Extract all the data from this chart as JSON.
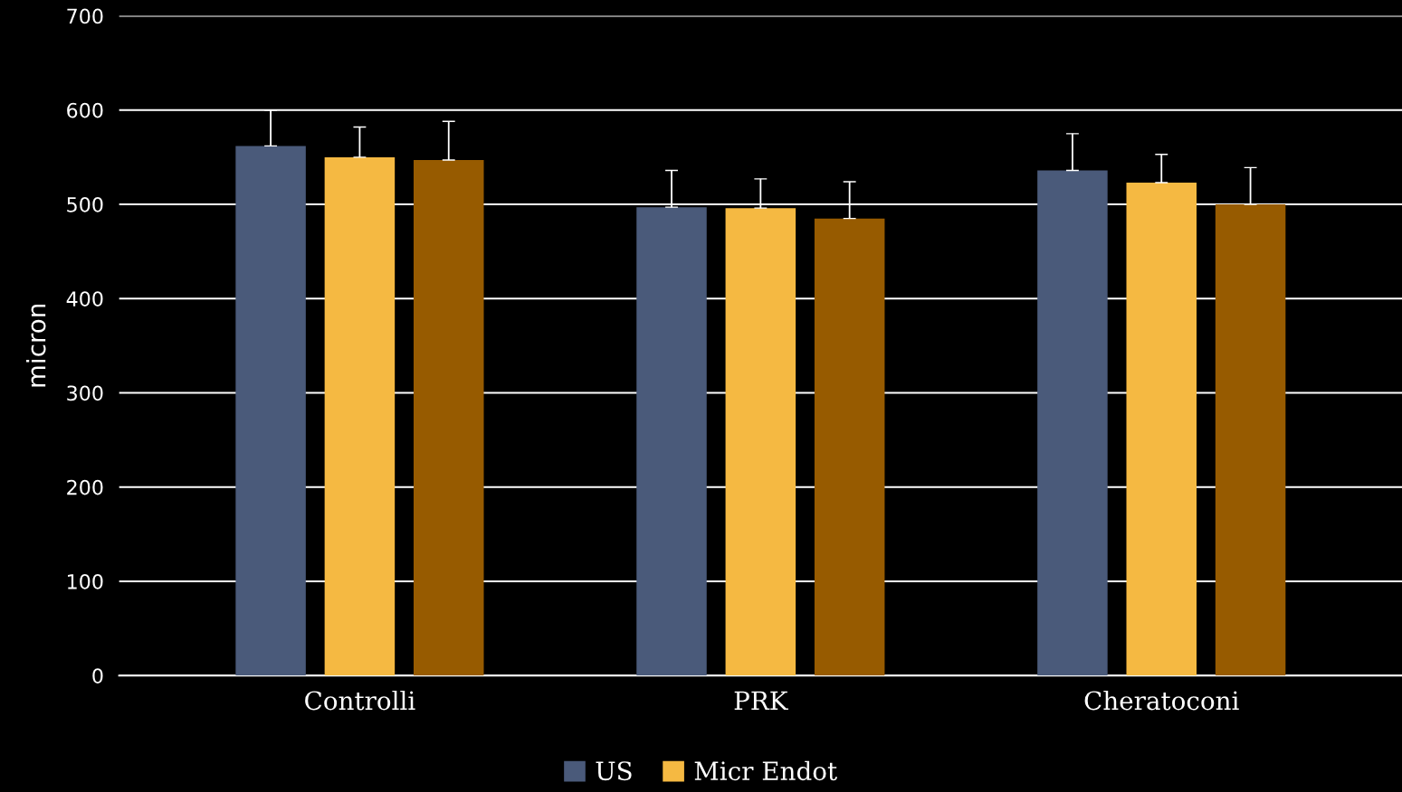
{
  "chart_data": {
    "type": "bar",
    "ylabel": "micron",
    "categories": [
      "Controlli",
      "PRK",
      "Cheratoconi"
    ],
    "series": [
      {
        "name": "US",
        "color": "#4a5a7a",
        "values": [
          562,
          497,
          536
        ],
        "errors": [
          [
            562,
            600
          ],
          [
            497,
            536
          ],
          [
            536,
            575
          ]
        ]
      },
      {
        "name": "Micr Endot",
        "color": "#f5b942",
        "values": [
          550,
          496,
          523
        ],
        "errors": [
          [
            550,
            582
          ],
          [
            496,
            527
          ],
          [
            523,
            553
          ]
        ]
      },
      {
        "color": "#975b00",
        "values": [
          547,
          485,
          500
        ],
        "errors": [
          [
            547,
            588
          ],
          [
            485,
            524
          ],
          [
            500,
            539
          ]
        ]
      }
    ],
    "ylim": [
      0,
      700
    ],
    "yticks": [
      0,
      100,
      200,
      300,
      400,
      500,
      600,
      700
    ],
    "grid": "y",
    "legend": "bottom"
  }
}
